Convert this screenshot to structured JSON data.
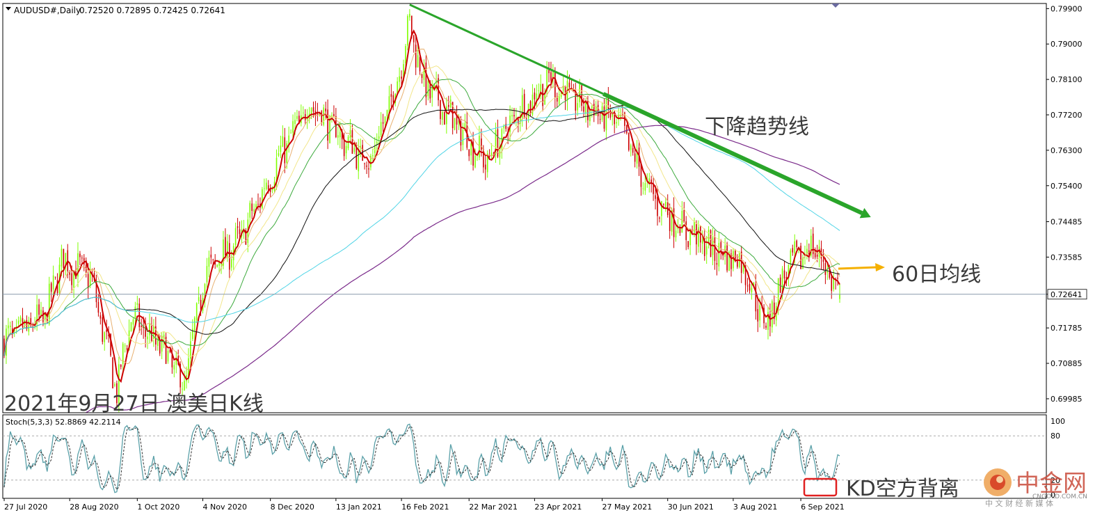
{
  "header": {
    "symbol": "AUDUSD#,Daily",
    "ohlc": "0.72520 0.72895 0.72425 0.72641"
  },
  "annotations": {
    "date_label": "2021年9月27日 澳美日K线",
    "trendline_label": "下降趋势线",
    "ma60_label": "60日均线",
    "kd_label": "KD空方背离"
  },
  "watermark": {
    "brand": "中金网",
    "sub": "中 文 财 经 新 媒 体",
    "site": "CNGOLD.COM.CN"
  },
  "colors": {
    "bull": "#7fff00",
    "bear": "#cc0000",
    "ma_red": "#cc0000",
    "ma_orange": "#e8b070",
    "ma_yellow": "#f2e68a",
    "ma_green": "#3caa3c",
    "ma_black": "#101010",
    "ma_cyan": "#4fd4e6",
    "ma_purple": "#7a2a8a",
    "trendline": "#2aa52a",
    "arrow_orange": "#f5b000",
    "stoch_main": "#5aa0a8",
    "stoch_signal": "#303030"
  },
  "chart_data": [
    {
      "type": "candlestick",
      "symbol": "AUDUSD#",
      "timeframe": "Daily",
      "current_price": "0.72641",
      "y_ticks": [
        "0.79900",
        "0.79000",
        "0.78100",
        "0.77200",
        "0.76300",
        "0.75400",
        "0.74485",
        "0.73585",
        "0.72641",
        "0.71785",
        "0.70885",
        "0.69985"
      ],
      "ylim": [
        0.6963,
        0.8003
      ],
      "x_ticks": [
        "27 Jul 2020",
        "28 Aug 2020",
        "1 Oct 2020",
        "4 Nov 2020",
        "8 Dec 2020",
        "13 Jan 2021",
        "16 Feb 2021",
        "22 Mar 2021",
        "23 Apr 2021",
        "27 May 2021",
        "30 Jun 2021",
        "3 Aug 2021",
        "6 Sep 2021"
      ],
      "close_anchors": [
        [
          0,
          0.7145
        ],
        [
          20,
          0.7205
        ],
        [
          28,
          0.735
        ],
        [
          42,
          0.731
        ],
        [
          55,
          0.702
        ],
        [
          62,
          0.721
        ],
        [
          78,
          0.712
        ],
        [
          88,
          0.703
        ],
        [
          98,
          0.732
        ],
        [
          115,
          0.74
        ],
        [
          135,
          0.762
        ],
        [
          150,
          0.775
        ],
        [
          165,
          0.766
        ],
        [
          178,
          0.76
        ],
        [
          190,
          0.777
        ],
        [
          198,
          0.795
        ],
        [
          205,
          0.78
        ],
        [
          220,
          0.77
        ],
        [
          235,
          0.76
        ],
        [
          250,
          0.772
        ],
        [
          266,
          0.781
        ],
        [
          280,
          0.775
        ],
        [
          300,
          0.77
        ],
        [
          315,
          0.752
        ],
        [
          330,
          0.744
        ],
        [
          345,
          0.738
        ],
        [
          360,
          0.735
        ],
        [
          372,
          0.718
        ],
        [
          382,
          0.733
        ],
        [
          395,
          0.739
        ],
        [
          408,
          0.7264
        ]
      ],
      "moving_averages": [
        {
          "name": "MA5",
          "period": 5
        },
        {
          "name": "MA10",
          "period": 10
        },
        {
          "name": "MA20",
          "period": 20
        },
        {
          "name": "MA30",
          "period": 30
        },
        {
          "name": "MA60",
          "period": 60
        },
        {
          "name": "MA120",
          "period": 120
        },
        {
          "name": "MA200",
          "period": 200
        }
      ],
      "trendline": {
        "from": [
          198,
          0.8
        ],
        "to": [
          413,
          0.746
        ]
      }
    },
    {
      "type": "line",
      "indicator": "Stoch(5,3,3) 52.8869 42.2114",
      "y_ticks": [
        "100",
        "80",
        "20",
        "0"
      ],
      "ylim": [
        0,
        100
      ],
      "last_main": 52.8869,
      "last_signal": 42.2114
    }
  ]
}
